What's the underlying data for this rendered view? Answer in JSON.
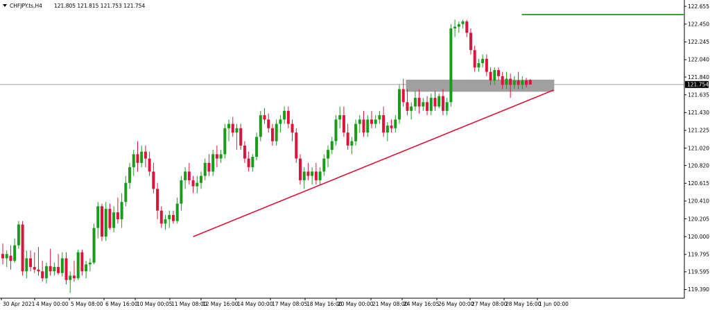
{
  "header": {
    "symbol": "CHFJPY.ts,H4",
    "ohlc": "121.805 121.815 121.753 121.754"
  },
  "colors": {
    "bull": "#1a9b1a",
    "bear": "#dc143c",
    "trendline": "#dc143c",
    "resistance": "#008000",
    "zone": "#808080",
    "price_line": "#a0a0a0",
    "price_tag_bg": "#000000",
    "price_tag_text": "#ffffff"
  },
  "chart_data": {
    "type": "candlestick",
    "title": "CHFJPY.ts,H4",
    "y_ticks": [
      "122.655",
      "122.450",
      "122.245",
      "122.040",
      "121.840",
      "121.635",
      "121.430",
      "121.225",
      "121.020",
      "120.820",
      "120.615",
      "120.410",
      "120.205",
      "120.000",
      "119.795",
      "119.595",
      "119.390"
    ],
    "ylim": [
      119.29,
      122.72
    ],
    "x_ticks": [
      "30 Apr 2021",
      "4 May 00:00",
      "5 May 08:00",
      "6 May 16:00",
      "10 May 00:05",
      "11 May 08:00",
      "12 May 16:00",
      "14 May 00:00",
      "17 May 08:05",
      "18 May 16:00",
      "20 May 00:00",
      "21 May 08:00",
      "24 May 16:05",
      "26 May 00:00",
      "27 May 08:00",
      "28 May 16:00",
      "1 Jun 00:00"
    ],
    "current_price": "121.754",
    "trendline": {
      "from": {
        "bar": 48,
        "price": 120.0
      },
      "to": {
        "bar": 138,
        "price": 121.69
      }
    },
    "resistance_line": {
      "from_bar": 130,
      "price": 122.56
    },
    "zone": {
      "from_bar": 102,
      "to_bar": 138,
      "top": 121.81,
      "bottom": 121.67
    },
    "candles": [
      {
        "o": 119.8,
        "h": 119.92,
        "l": 119.68,
        "c": 119.75
      },
      {
        "o": 119.75,
        "h": 119.84,
        "l": 119.65,
        "c": 119.8
      },
      {
        "o": 119.78,
        "h": 119.9,
        "l": 119.62,
        "c": 119.72
      },
      {
        "o": 119.72,
        "h": 119.98,
        "l": 119.7,
        "c": 119.9
      },
      {
        "o": 119.9,
        "h": 120.18,
        "l": 119.86,
        "c": 120.14
      },
      {
        "o": 120.14,
        "h": 120.18,
        "l": 119.55,
        "c": 119.6
      },
      {
        "o": 119.6,
        "h": 119.84,
        "l": 119.52,
        "c": 119.75
      },
      {
        "o": 119.75,
        "h": 119.84,
        "l": 119.6,
        "c": 119.65
      },
      {
        "o": 119.65,
        "h": 119.82,
        "l": 119.58,
        "c": 119.62
      },
      {
        "o": 119.62,
        "h": 119.88,
        "l": 119.55,
        "c": 119.6
      },
      {
        "o": 119.6,
        "h": 119.72,
        "l": 119.48,
        "c": 119.52
      },
      {
        "o": 119.52,
        "h": 119.7,
        "l": 119.46,
        "c": 119.66
      },
      {
        "o": 119.66,
        "h": 119.86,
        "l": 119.55,
        "c": 119.6
      },
      {
        "o": 119.6,
        "h": 119.7,
        "l": 119.55,
        "c": 119.65
      },
      {
        "o": 119.65,
        "h": 119.8,
        "l": 119.56,
        "c": 119.58
      },
      {
        "o": 119.58,
        "h": 119.82,
        "l": 119.54,
        "c": 119.75
      },
      {
        "o": 119.75,
        "h": 119.82,
        "l": 119.45,
        "c": 119.5
      },
      {
        "o": 119.5,
        "h": 119.6,
        "l": 119.35,
        "c": 119.55
      },
      {
        "o": 119.55,
        "h": 119.72,
        "l": 119.48,
        "c": 119.52
      },
      {
        "o": 119.52,
        "h": 119.85,
        "l": 119.5,
        "c": 119.82
      },
      {
        "o": 119.82,
        "h": 119.85,
        "l": 119.55,
        "c": 119.6
      },
      {
        "o": 119.6,
        "h": 119.72,
        "l": 119.52,
        "c": 119.68
      },
      {
        "o": 119.68,
        "h": 119.75,
        "l": 119.6,
        "c": 119.7
      },
      {
        "o": 119.7,
        "h": 120.15,
        "l": 119.68,
        "c": 120.1
      },
      {
        "o": 120.1,
        "h": 120.4,
        "l": 119.98,
        "c": 120.35
      },
      {
        "o": 120.35,
        "h": 120.38,
        "l": 119.95,
        "c": 120.0
      },
      {
        "o": 120.0,
        "h": 120.4,
        "l": 119.95,
        "c": 120.32
      },
      {
        "o": 120.32,
        "h": 120.38,
        "l": 120.08,
        "c": 120.1
      },
      {
        "o": 120.1,
        "h": 120.35,
        "l": 120.05,
        "c": 120.28
      },
      {
        "o": 120.28,
        "h": 120.45,
        "l": 120.15,
        "c": 120.2
      },
      {
        "o": 120.2,
        "h": 120.5,
        "l": 120.1,
        "c": 120.4
      },
      {
        "o": 120.4,
        "h": 120.7,
        "l": 120.35,
        "c": 120.62
      },
      {
        "o": 120.62,
        "h": 120.85,
        "l": 120.55,
        "c": 120.8
      },
      {
        "o": 120.8,
        "h": 121.0,
        "l": 120.7,
        "c": 120.95
      },
      {
        "o": 120.95,
        "h": 121.1,
        "l": 120.75,
        "c": 120.85
      },
      {
        "o": 120.85,
        "h": 121.05,
        "l": 120.8,
        "c": 120.98
      },
      {
        "o": 120.98,
        "h": 121.05,
        "l": 120.8,
        "c": 120.9
      },
      {
        "o": 120.9,
        "h": 120.98,
        "l": 120.7,
        "c": 120.75
      },
      {
        "o": 120.75,
        "h": 120.85,
        "l": 120.5,
        "c": 120.55
      },
      {
        "o": 120.55,
        "h": 120.62,
        "l": 120.2,
        "c": 120.3
      },
      {
        "o": 120.3,
        "h": 120.35,
        "l": 120.1,
        "c": 120.15
      },
      {
        "o": 120.15,
        "h": 120.25,
        "l": 120.08,
        "c": 120.2
      },
      {
        "o": 120.2,
        "h": 120.3,
        "l": 120.1,
        "c": 120.25
      },
      {
        "o": 120.25,
        "h": 120.3,
        "l": 120.15,
        "c": 120.18
      },
      {
        "o": 120.18,
        "h": 120.45,
        "l": 120.15,
        "c": 120.38
      },
      {
        "o": 120.38,
        "h": 120.7,
        "l": 120.3,
        "c": 120.65
      },
      {
        "o": 120.65,
        "h": 120.8,
        "l": 120.55,
        "c": 120.75
      },
      {
        "o": 120.75,
        "h": 120.85,
        "l": 120.6,
        "c": 120.65
      },
      {
        "o": 120.65,
        "h": 120.7,
        "l": 120.5,
        "c": 120.58
      },
      {
        "o": 120.58,
        "h": 120.7,
        "l": 120.5,
        "c": 120.62
      },
      {
        "o": 120.62,
        "h": 120.75,
        "l": 120.55,
        "c": 120.7
      },
      {
        "o": 120.7,
        "h": 120.9,
        "l": 120.65,
        "c": 120.85
      },
      {
        "o": 120.85,
        "h": 120.95,
        "l": 120.7,
        "c": 120.75
      },
      {
        "o": 120.75,
        "h": 121.0,
        "l": 120.7,
        "c": 120.95
      },
      {
        "o": 120.95,
        "h": 121.05,
        "l": 120.8,
        "c": 120.9
      },
      {
        "o": 120.9,
        "h": 121.0,
        "l": 120.85,
        "c": 120.95
      },
      {
        "o": 120.95,
        "h": 121.3,
        "l": 120.9,
        "c": 121.25
      },
      {
        "o": 121.25,
        "h": 121.35,
        "l": 121.1,
        "c": 121.3
      },
      {
        "o": 121.3,
        "h": 121.38,
        "l": 121.15,
        "c": 121.2
      },
      {
        "o": 121.2,
        "h": 121.3,
        "l": 121.0,
        "c": 121.25
      },
      {
        "o": 121.25,
        "h": 121.3,
        "l": 121.0,
        "c": 121.05
      },
      {
        "o": 121.05,
        "h": 121.1,
        "l": 120.85,
        "c": 120.9
      },
      {
        "o": 120.9,
        "h": 120.98,
        "l": 120.75,
        "c": 120.8
      },
      {
        "o": 120.8,
        "h": 120.95,
        "l": 120.75,
        "c": 120.92
      },
      {
        "o": 120.92,
        "h": 121.2,
        "l": 120.88,
        "c": 121.15
      },
      {
        "o": 121.15,
        "h": 121.45,
        "l": 121.1,
        "c": 121.4
      },
      {
        "o": 121.4,
        "h": 121.48,
        "l": 121.3,
        "c": 121.35
      },
      {
        "o": 121.35,
        "h": 121.42,
        "l": 121.2,
        "c": 121.25
      },
      {
        "o": 121.25,
        "h": 121.3,
        "l": 121.05,
        "c": 121.1
      },
      {
        "o": 121.1,
        "h": 121.35,
        "l": 121.05,
        "c": 121.3
      },
      {
        "o": 121.3,
        "h": 121.4,
        "l": 121.2,
        "c": 121.35
      },
      {
        "o": 121.35,
        "h": 121.5,
        "l": 121.3,
        "c": 121.45
      },
      {
        "o": 121.45,
        "h": 121.5,
        "l": 121.25,
        "c": 121.3
      },
      {
        "o": 121.3,
        "h": 121.35,
        "l": 121.1,
        "c": 121.2
      },
      {
        "o": 121.2,
        "h": 121.25,
        "l": 120.85,
        "c": 120.9
      },
      {
        "o": 120.9,
        "h": 120.95,
        "l": 120.6,
        "c": 120.65
      },
      {
        "o": 120.65,
        "h": 120.8,
        "l": 120.55,
        "c": 120.75
      },
      {
        "o": 120.75,
        "h": 120.85,
        "l": 120.65,
        "c": 120.7
      },
      {
        "o": 120.7,
        "h": 120.8,
        "l": 120.6,
        "c": 120.75
      },
      {
        "o": 120.75,
        "h": 120.85,
        "l": 120.6,
        "c": 120.65
      },
      {
        "o": 120.65,
        "h": 120.8,
        "l": 120.6,
        "c": 120.75
      },
      {
        "o": 120.75,
        "h": 120.95,
        "l": 120.7,
        "c": 120.9
      },
      {
        "o": 120.9,
        "h": 121.05,
        "l": 120.8,
        "c": 121.0
      },
      {
        "o": 121.0,
        "h": 121.15,
        "l": 120.95,
        "c": 121.1
      },
      {
        "o": 121.1,
        "h": 121.4,
        "l": 121.05,
        "c": 121.35
      },
      {
        "o": 121.35,
        "h": 121.5,
        "l": 121.25,
        "c": 121.4
      },
      {
        "o": 121.4,
        "h": 121.5,
        "l": 121.15,
        "c": 121.2
      },
      {
        "o": 121.2,
        "h": 121.3,
        "l": 121.0,
        "c": 121.05
      },
      {
        "o": 121.05,
        "h": 121.15,
        "l": 120.95,
        "c": 121.1
      },
      {
        "o": 121.1,
        "h": 121.35,
        "l": 121.05,
        "c": 121.3
      },
      {
        "o": 121.3,
        "h": 121.4,
        "l": 121.2,
        "c": 121.35
      },
      {
        "o": 121.35,
        "h": 121.45,
        "l": 121.15,
        "c": 121.2
      },
      {
        "o": 121.2,
        "h": 121.4,
        "l": 121.15,
        "c": 121.35
      },
      {
        "o": 121.35,
        "h": 121.45,
        "l": 121.25,
        "c": 121.3
      },
      {
        "o": 121.3,
        "h": 121.4,
        "l": 121.25,
        "c": 121.35
      },
      {
        "o": 121.35,
        "h": 121.45,
        "l": 121.3,
        "c": 121.4
      },
      {
        "o": 121.4,
        "h": 121.5,
        "l": 121.15,
        "c": 121.2
      },
      {
        "o": 121.2,
        "h": 121.32,
        "l": 121.1,
        "c": 121.28
      },
      {
        "o": 121.28,
        "h": 121.35,
        "l": 121.2,
        "c": 121.25
      },
      {
        "o": 121.25,
        "h": 121.4,
        "l": 121.2,
        "c": 121.35
      },
      {
        "o": 121.35,
        "h": 121.75,
        "l": 121.3,
        "c": 121.7
      },
      {
        "o": 121.7,
        "h": 121.82,
        "l": 121.5,
        "c": 121.55
      },
      {
        "o": 121.55,
        "h": 121.7,
        "l": 121.4,
        "c": 121.45
      },
      {
        "o": 121.45,
        "h": 121.55,
        "l": 121.35,
        "c": 121.5
      },
      {
        "o": 121.5,
        "h": 121.68,
        "l": 121.45,
        "c": 121.6
      },
      {
        "o": 121.6,
        "h": 121.7,
        "l": 121.42,
        "c": 121.5
      },
      {
        "o": 121.5,
        "h": 121.6,
        "l": 121.45,
        "c": 121.55
      },
      {
        "o": 121.55,
        "h": 121.62,
        "l": 121.4,
        "c": 121.45
      },
      {
        "o": 121.45,
        "h": 121.65,
        "l": 121.4,
        "c": 121.6
      },
      {
        "o": 121.6,
        "h": 121.68,
        "l": 121.45,
        "c": 121.5
      },
      {
        "o": 121.5,
        "h": 121.65,
        "l": 121.48,
        "c": 121.62
      },
      {
        "o": 121.62,
        "h": 121.7,
        "l": 121.4,
        "c": 121.45
      },
      {
        "o": 121.45,
        "h": 121.6,
        "l": 121.4,
        "c": 121.55
      },
      {
        "o": 121.55,
        "h": 122.45,
        "l": 121.5,
        "c": 122.4
      },
      {
        "o": 122.4,
        "h": 122.5,
        "l": 122.3,
        "c": 122.42
      },
      {
        "o": 122.42,
        "h": 122.48,
        "l": 122.35,
        "c": 122.45
      },
      {
        "o": 122.45,
        "h": 122.5,
        "l": 122.4,
        "c": 122.48
      },
      {
        "o": 122.48,
        "h": 122.5,
        "l": 122.3,
        "c": 122.35
      },
      {
        "o": 122.35,
        "h": 122.4,
        "l": 122.1,
        "c": 122.15
      },
      {
        "o": 122.15,
        "h": 122.2,
        "l": 121.9,
        "c": 121.95
      },
      {
        "o": 121.95,
        "h": 122.05,
        "l": 121.9,
        "c": 122.0
      },
      {
        "o": 122.0,
        "h": 122.1,
        "l": 121.95,
        "c": 122.05
      },
      {
        "o": 122.05,
        "h": 122.1,
        "l": 121.85,
        "c": 121.9
      },
      {
        "o": 121.9,
        "h": 121.95,
        "l": 121.75,
        "c": 121.8
      },
      {
        "o": 121.8,
        "h": 121.95,
        "l": 121.75,
        "c": 121.92
      },
      {
        "o": 121.92,
        "h": 121.95,
        "l": 121.8,
        "c": 121.85
      },
      {
        "o": 121.85,
        "h": 121.9,
        "l": 121.7,
        "c": 121.75
      },
      {
        "o": 121.75,
        "h": 121.9,
        "l": 121.7,
        "c": 121.82
      },
      {
        "o": 121.82,
        "h": 121.88,
        "l": 121.6,
        "c": 121.75
      },
      {
        "o": 121.75,
        "h": 121.85,
        "l": 121.7,
        "c": 121.8
      },
      {
        "o": 121.8,
        "h": 121.9,
        "l": 121.7,
        "c": 121.75
      },
      {
        "o": 121.75,
        "h": 121.85,
        "l": 121.7,
        "c": 121.8
      },
      {
        "o": 121.8,
        "h": 121.83,
        "l": 121.72,
        "c": 121.75
      },
      {
        "o": 121.805,
        "h": 121.815,
        "l": 121.753,
        "c": 121.754
      }
    ]
  }
}
